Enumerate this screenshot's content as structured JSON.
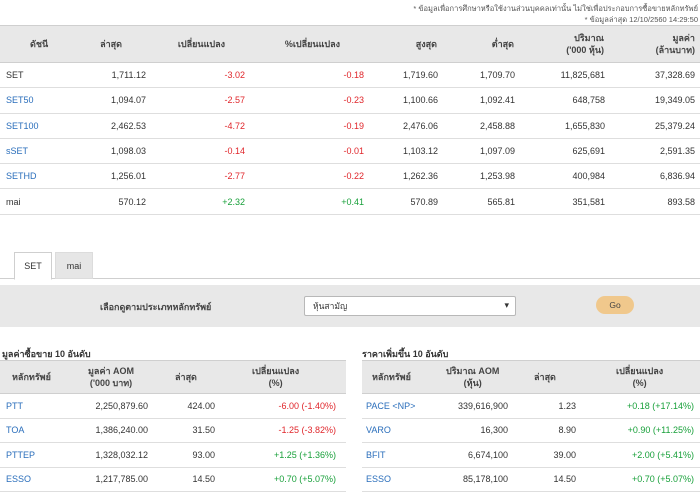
{
  "notes": {
    "disclaimer": "* ข้อมูลเพื่อการศึกษาหรือใช้งานส่วนบุคคลเท่านั้น ไม่ใช่เพื่อประกอบการซื้อขายหลักทรัพย์",
    "updated": "* ข้อมูลล่าสุด 12/10/2560 14:29:50"
  },
  "index_table": {
    "headers": {
      "index": "ดัชนี",
      "last": "ล่าสุด",
      "change": "เปลี่ยนแปลง",
      "pct_change": "%เปลี่ยนแปลง",
      "high": "สูงสุด",
      "low": "ต่ำสุด",
      "volume_1": "ปริมาณ",
      "volume_2": "('000 หุ้น)",
      "value_1": "มูลค่า",
      "value_2": "(ล้านบาท)"
    },
    "rows": [
      {
        "name": "SET",
        "last": "1,711.12",
        "change": "-3.02",
        "pct": "-0.18",
        "high": "1,719.60",
        "low": "1,709.70",
        "volume": "11,825,681",
        "value": "37,328.69"
      },
      {
        "name": "SET50",
        "last": "1,094.07",
        "change": "-2.57",
        "pct": "-0.23",
        "high": "1,100.66",
        "low": "1,092.41",
        "volume": "648,758",
        "value": "19,349.05"
      },
      {
        "name": "SET100",
        "last": "2,462.53",
        "change": "-4.72",
        "pct": "-0.19",
        "high": "2,476.06",
        "low": "2,458.88",
        "volume": "1,655,830",
        "value": "25,379.24"
      },
      {
        "name": "sSET",
        "last": "1,098.03",
        "change": "-0.14",
        "pct": "-0.01",
        "high": "1,103.12",
        "low": "1,097.09",
        "volume": "625,691",
        "value": "2,591.35"
      },
      {
        "name": "SETHD",
        "last": "1,256.01",
        "change": "-2.77",
        "pct": "-0.22",
        "high": "1,262.36",
        "low": "1,253.98",
        "volume": "400,984",
        "value": "6,836.94"
      },
      {
        "name": "mai",
        "last": "570.12",
        "change": "+2.32",
        "pct": "+0.41",
        "high": "570.89",
        "low": "565.81",
        "volume": "351,581",
        "value": "893.58"
      }
    ]
  },
  "tabs": [
    "SET",
    "mai"
  ],
  "filter": {
    "label": "เลือกดูตามประเภทหลักทรัพย์",
    "selected": "หุ้นสามัญ",
    "go": "Go"
  },
  "left_table": {
    "title": "มูลค่าซื้อขาย 10 อันดับ",
    "headers": {
      "symbol": "หลักทรัพย์",
      "value_1": "มูลค่า AOM",
      "value_2": "('000 บาท)",
      "last": "ล่าสุด",
      "change_1": "เปลี่ยนแปลง",
      "change_2": "(%)"
    },
    "rows": [
      {
        "symbol": "PTT",
        "value": "2,250,879.60",
        "last": "424.00",
        "change": "-6.00 (-1.40%)"
      },
      {
        "symbol": "TOA",
        "value": "1,386,240.00",
        "last": "31.50",
        "change": "-1.25 (-3.82%)"
      },
      {
        "symbol": "PTTEP",
        "value": "1,328,032.12",
        "last": "93.00",
        "change": "+1.25 (+1.36%)"
      },
      {
        "symbol": "ESSO",
        "value": "1,217,785.00",
        "last": "14.50",
        "change": "+0.70 (+5.07%)"
      }
    ]
  },
  "right_table": {
    "title": "ราคาเพิ่มขึ้น 10 อันดับ",
    "headers": {
      "symbol": "หลักทรัพย์",
      "volume_1": "ปริมาณ AOM",
      "volume_2": "(หุ้น)",
      "last": "ล่าสุด",
      "change_1": "เปลี่ยนแปลง",
      "change_2": "(%)"
    },
    "rows": [
      {
        "symbol": "PACE <NP>",
        "volume": "339,616,900",
        "last": "1.23",
        "change": "+0.18 (+17.14%)"
      },
      {
        "symbol": "VARO",
        "volume": "16,300",
        "last": "8.90",
        "change": "+0.90 (+11.25%)"
      },
      {
        "symbol": "BFIT",
        "volume": "6,674,100",
        "last": "39.00",
        "change": "+2.00 (+5.41%)"
      },
      {
        "symbol": "ESSO",
        "volume": "85,178,100",
        "last": "14.50",
        "change": "+0.70 (+5.07%)"
      }
    ]
  },
  "colors": {
    "negative": "#e0262b",
    "positive": "#18a03a",
    "link": "#2a6ebb",
    "go_button": "#f0c88c"
  }
}
